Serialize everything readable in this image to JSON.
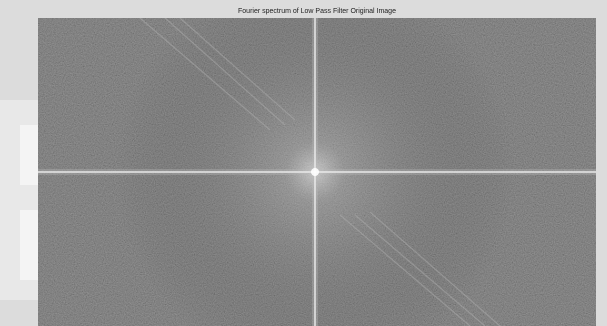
{
  "title": "Fourier spectrum of Low Pass Filter Original Image"
}
